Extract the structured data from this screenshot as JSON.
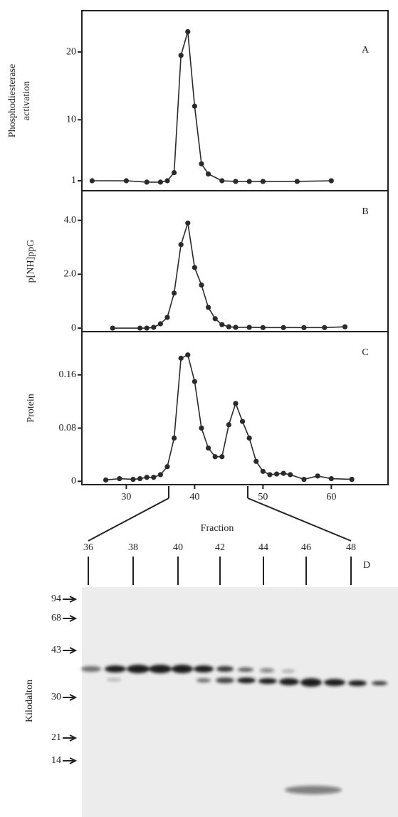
{
  "chart_data": [
    {
      "type": "line",
      "panel_label": "A",
      "ylabel": [
        "Phosphodiesterase",
        "activation"
      ],
      "x": [
        25,
        30,
        33,
        35,
        36,
        37,
        38,
        39,
        40,
        41,
        42,
        44,
        46,
        48,
        50,
        55,
        60
      ],
      "series": [
        {
          "color": "#2a2a2a",
          "values": [
            1.0,
            1.0,
            0.8,
            0.8,
            1.0,
            2.2,
            19.5,
            23.0,
            12.0,
            3.5,
            2.0,
            1.0,
            0.9,
            0.9,
            0.9,
            0.9,
            1.0
          ]
        }
      ],
      "xlim": [
        23.5,
        68.3
      ],
      "ylim": [
        -0.47,
        26.1
      ],
      "yticks": [
        1,
        10,
        20
      ]
    },
    {
      "type": "line",
      "panel_label": "B",
      "ylabel": [
        "p[NH]ppG"
      ],
      "x": [
        28,
        32,
        33,
        34,
        35,
        36,
        37,
        38,
        39,
        40,
        41,
        42,
        43,
        44,
        45,
        46,
        48,
        50,
        53,
        56,
        59,
        62
      ],
      "series": [
        {
          "color": "#2a2a2a",
          "values": [
            0.0,
            0.0,
            0.0,
            0.03,
            0.16,
            0.4,
            1.3,
            3.1,
            3.9,
            2.25,
            1.6,
            0.77,
            0.35,
            0.13,
            0.05,
            0.03,
            0.03,
            0.02,
            0.02,
            0.02,
            0.02,
            0.05
          ]
        }
      ],
      "xlim": [
        23.5,
        68.3
      ],
      "ylim": [
        -0.13,
        5.1
      ],
      "yticks": [
        0,
        {
          "value": 2,
          "label": "2.0"
        },
        {
          "value": 4,
          "label": "4.0"
        }
      ]
    },
    {
      "type": "line",
      "panel_label": "C",
      "ylabel": [
        "Protein"
      ],
      "xlabel": "Fraction",
      "x": [
        27,
        29,
        31,
        32,
        33,
        34,
        35,
        36,
        37,
        38,
        39,
        40,
        41,
        42,
        43,
        44,
        45,
        46,
        47,
        48,
        49,
        50,
        51,
        52,
        53,
        54,
        56,
        58,
        60,
        63
      ],
      "series": [
        {
          "color": "#2a2a2a",
          "values": [
            0.002,
            0.004,
            0.003,
            0.004,
            0.006,
            0.006,
            0.01,
            0.022,
            0.065,
            0.185,
            0.19,
            0.15,
            0.08,
            0.05,
            0.037,
            0.037,
            0.085,
            0.117,
            0.09,
            0.065,
            0.03,
            0.015,
            0.01,
            0.011,
            0.012,
            0.01,
            0.003,
            0.008,
            0.004,
            0.003
          ]
        }
      ],
      "xlim": [
        23.5,
        68.3
      ],
      "ylim": [
        -0.005,
        0.225
      ],
      "yticks": [
        0,
        0.08,
        0.16
      ],
      "xticks": [
        30,
        40,
        50,
        60
      ]
    }
  ],
  "gel": {
    "panel_label": "D",
    "ylabel": "Kilodalton",
    "lanes": [
      "36",
      "38",
      "40",
      "42",
      "44",
      "46",
      "48"
    ],
    "markers": [
      "94",
      "68",
      "43",
      "30",
      "21",
      "14"
    ]
  }
}
